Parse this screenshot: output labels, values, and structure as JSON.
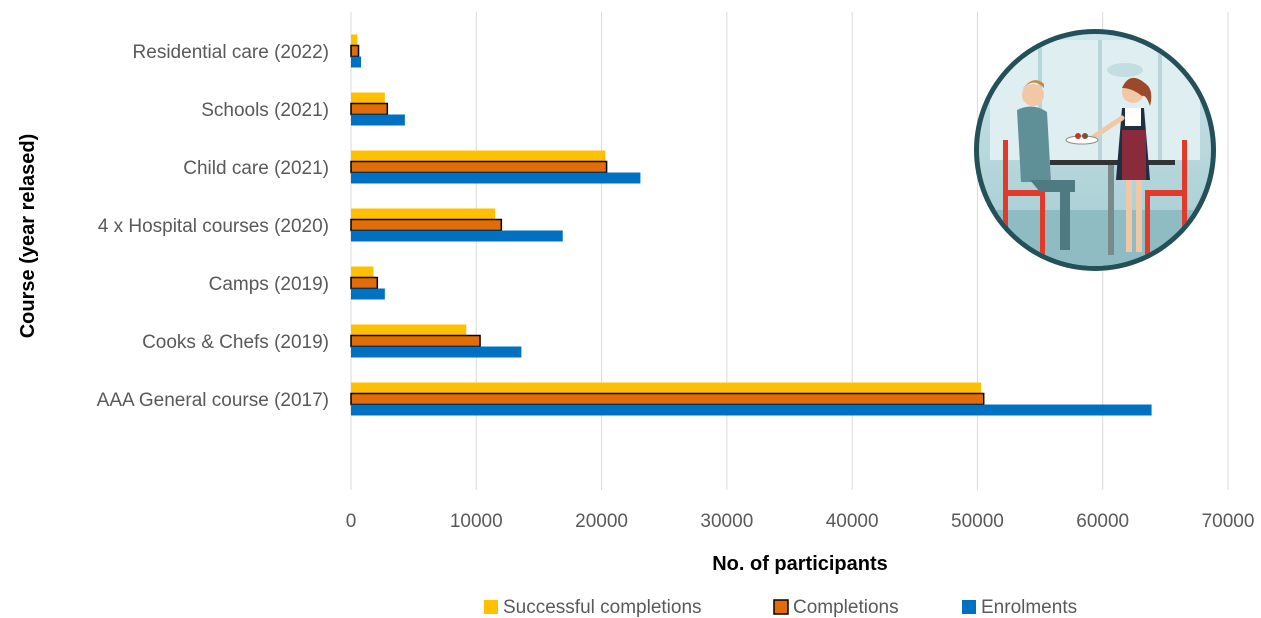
{
  "chart_data": {
    "type": "bar",
    "orientation": "horizontal",
    "categories": [
      "AAA General course  (2017)",
      "Cooks & Chefs (2019)",
      "Camps (2019)",
      "4 x  Hospital courses (2020)",
      "Child care (2021)",
      "Schools (2021)",
      "Residential care (2022)"
    ],
    "series": [
      {
        "name": "Successful completions",
        "color": "#FFC000",
        "values": [
          50300,
          9200,
          1800,
          11500,
          20300,
          2700,
          500
        ]
      },
      {
        "name": "Completions",
        "color": "#E36C0A",
        "outline": "#000000",
        "values": [
          50500,
          10300,
          2100,
          12000,
          20400,
          2900,
          600
        ]
      },
      {
        "name": "Enrolments",
        "color": "#0070C0",
        "values": [
          63900,
          13600,
          2700,
          16900,
          23100,
          4300,
          800
        ]
      }
    ],
    "xlabel": "No. of participants",
    "ylabel": "Course (year relased)",
    "xlim": [
      0,
      70000
    ],
    "xticks": [
      "0",
      "10000",
      "20000",
      "30000",
      "40000",
      "50000",
      "60000",
      "70000"
    ],
    "grid": "vertical",
    "legend": "bottom",
    "decoration": "waiter-serving-diner-icon"
  }
}
